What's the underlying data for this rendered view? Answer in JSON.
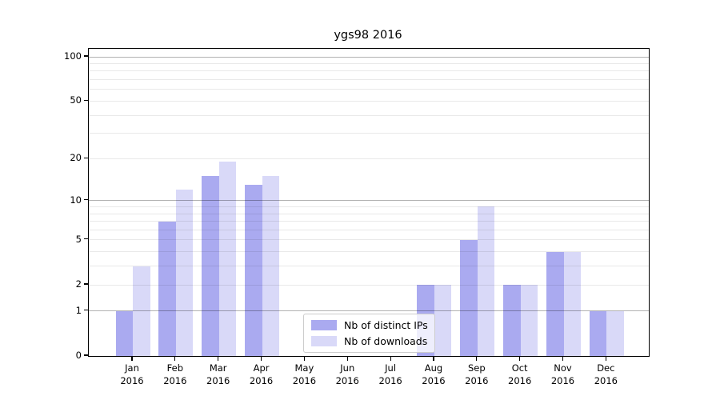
{
  "figure": {
    "background": "#ffffff"
  },
  "chart_data": {
    "type": "bar",
    "title": "ygs98 2016",
    "categories": [
      "Jan",
      "Feb",
      "Mar",
      "Apr",
      "May",
      "Jun",
      "Jul",
      "Aug",
      "Sep",
      "Oct",
      "Nov",
      "Dec"
    ],
    "x_year_label": "2016",
    "series": [
      {
        "name": "Nb of distinct IPs",
        "color": "#aaaaf0",
        "values": [
          1,
          7,
          15,
          13,
          0,
          0,
          0,
          2,
          5,
          2,
          4,
          1
        ]
      },
      {
        "name": "Nb of downloads",
        "color": "#d9d9f8",
        "values": [
          3,
          12,
          19,
          15,
          0,
          0,
          0,
          2,
          9,
          2,
          4,
          1
        ]
      }
    ],
    "xlabel": "",
    "ylabel": "",
    "y_axis": {
      "scale": "log10(value+1)",
      "tick_values": [
        0,
        1,
        2,
        5,
        10,
        20,
        50,
        100
      ],
      "tick_labels": [
        "0",
        "1",
        "2",
        "5",
        "10",
        "20",
        "50",
        "100"
      ],
      "major_grid_values": [
        1,
        10,
        100
      ],
      "minor_grid_values": [
        2,
        3,
        4,
        5,
        6,
        7,
        8,
        9,
        20,
        30,
        40,
        50,
        60,
        70,
        80,
        90
      ],
      "ylim": [
        0,
        113
      ]
    },
    "grid": true,
    "legend_position": "lower center inside"
  },
  "colors": {
    "spine": "#000000",
    "text": "#000000",
    "major_grid": "rgba(0,0,0,0.30)",
    "minor_grid": "rgba(0,0,0,0.085)",
    "legend_border": "#cccccc",
    "legend_background": "rgba(255,255,255,0.8)"
  }
}
